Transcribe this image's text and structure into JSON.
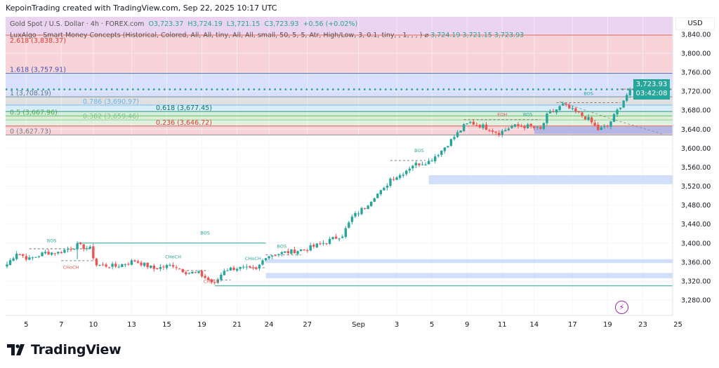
{
  "header": {
    "credit": "KepoinTrading created with TradingView.com, Sep 22, 2025 10:17 UTC"
  },
  "legend": {
    "symbol": "Gold Spot / U.S. Dollar · 4h · FOREX.com",
    "open": "O3,723.37",
    "high": "H3,724.19",
    "low": "L3,721.15",
    "close": "C3,723.93",
    "change": "+0.56 (+0.02%)",
    "indicator": "LuxAlgo - Smart Money Concepts (Historical, Colored, All, All, tiny, All, All, small, 50, 5, 5, Atr, High/Low, 3, 0.1, tiny, , 1,      ,      ,      )  ⌀",
    "indicator_values": "3,724.19  3,721.15  3,723.93"
  },
  "price_axis": {
    "currency": "USD",
    "last_price": "3,723.93",
    "countdown": "03:42:08"
  },
  "branding": {
    "logo_text": "TradingView"
  },
  "colors": {
    "up": "#26a69a",
    "down": "#ef5350",
    "accent": "#26a69a"
  },
  "chart_data": {
    "type": "candlestick",
    "title": "Gold Spot / U.S. Dollar · 4h",
    "ylim": [
      3260,
      3850
    ],
    "y_ticks": [
      "3,840.00",
      "3,800.00",
      "3,760.00",
      "3,720.00",
      "3,680.00",
      "3,640.00",
      "3,600.00",
      "3,560.00",
      "3,520.00",
      "3,480.00",
      "3,440.00",
      "3,400.00",
      "3,360.00",
      "3,320.00",
      "3,280.00"
    ],
    "y_tick_values": [
      3840,
      3800,
      3760,
      3720,
      3680,
      3640,
      3600,
      3560,
      3520,
      3480,
      3440,
      3400,
      3360,
      3320,
      3280
    ],
    "x_ticks": [
      {
        "label": "5",
        "i": 6
      },
      {
        "label": "7",
        "i": 17
      },
      {
        "label": "10",
        "i": 27
      },
      {
        "label": "13",
        "i": 39
      },
      {
        "label": "15",
        "i": 50
      },
      {
        "label": "19",
        "i": 61
      },
      {
        "label": "21",
        "i": 72
      },
      {
        "label": "24",
        "i": 82
      },
      {
        "label": "27",
        "i": 94
      },
      {
        "label": "Sep",
        "i": 110
      },
      {
        "label": "3",
        "i": 122
      },
      {
        "label": "5",
        "i": 133
      },
      {
        "label": "9",
        "i": 144
      },
      {
        "label": "11",
        "i": 155
      },
      {
        "label": "14",
        "i": 165
      },
      {
        "label": "17",
        "i": 177
      },
      {
        "label": "19",
        "i": 188
      },
      {
        "label": "23",
        "i": 199
      },
      {
        "label": "25",
        "i": 210
      }
    ],
    "price_path": [
      [
        0,
        3355
      ],
      [
        3,
        3380
      ],
      [
        7,
        3366
      ],
      [
        12,
        3380
      ],
      [
        16,
        3380
      ],
      [
        22,
        3395
      ],
      [
        26,
        3388
      ],
      [
        28,
        3354
      ],
      [
        34,
        3351
      ],
      [
        40,
        3363
      ],
      [
        46,
        3346
      ],
      [
        52,
        3354
      ],
      [
        56,
        3339
      ],
      [
        60,
        3336
      ],
      [
        65,
        3314
      ],
      [
        68,
        3344
      ],
      [
        72,
        3348
      ],
      [
        78,
        3343
      ],
      [
        81,
        3373
      ],
      [
        87,
        3380
      ],
      [
        94,
        3388
      ],
      [
        100,
        3403
      ],
      [
        105,
        3417
      ],
      [
        108,
        3454
      ],
      [
        112,
        3476
      ],
      [
        115,
        3499
      ],
      [
        118,
        3513
      ],
      [
        120,
        3536
      ],
      [
        123,
        3543
      ],
      [
        127,
        3565
      ],
      [
        132,
        3572
      ],
      [
        136,
        3595
      ],
      [
        140,
        3624
      ],
      [
        143,
        3646
      ],
      [
        145,
        3654
      ],
      [
        149,
        3646
      ],
      [
        154,
        3632
      ],
      [
        158,
        3646
      ],
      [
        163,
        3646
      ],
      [
        167,
        3639
      ],
      [
        169,
        3668
      ],
      [
        174,
        3691
      ],
      [
        178,
        3676
      ],
      [
        182,
        3661
      ],
      [
        185,
        3639
      ],
      [
        188,
        3646
      ],
      [
        192,
        3690
      ],
      [
        195,
        3724
      ]
    ],
    "fib_levels": [
      {
        "ratio": "2.618",
        "price": 3838.37,
        "label": "2.618 (3,838.37)",
        "color": "#e53935",
        "fill": "#f8d4d8"
      },
      {
        "ratio": "1.618",
        "price": 3757.91,
        "label": "1.618 (3,757.91)",
        "color": "#3f51b5",
        "fill": "#d8e0fb"
      },
      {
        "ratio": "1",
        "price": 3708.19,
        "label": "1 (3,708.19)",
        "color": "#607d8b",
        "fill": "#e0e0e0"
      },
      {
        "ratio": "0.786",
        "price": 3690.97,
        "label": "0.786 (3,690.97)",
        "color": "#64b5f6",
        "fill": "#d6ecf8"
      },
      {
        "ratio": "0.618",
        "price": 3677.45,
        "label": "0.618 (3,677.45)",
        "color": "#00796b",
        "fill": "#d3eedb"
      },
      {
        "ratio": "0.5",
        "price": 3667.96,
        "label": "0.5 (3,667.96)",
        "color": "#4caf50",
        "fill": "#dcefd6"
      },
      {
        "ratio": "0.382",
        "price": 3659.46,
        "label": "0.382 (3,659.46)",
        "color": "#81c784",
        "fill": "#dff1df"
      },
      {
        "ratio": "0.236",
        "price": 3646.72,
        "label": "0.236 (3,646.72)",
        "color": "#e53935",
        "fill": "#f8d4d8"
      },
      {
        "ratio": "0",
        "price": 3627.73,
        "label": "0 (3,627.73)",
        "color": "#787b86",
        "fill": null
      }
    ],
    "structure_labels": [
      {
        "text": "BOS",
        "i": 14,
        "price": 3402,
        "color": "#26a69a"
      },
      {
        "text": "CHoCH",
        "i": 20,
        "price": 3346,
        "color": "#ef5350"
      },
      {
        "text": "BOS",
        "i": 62,
        "price": 3418,
        "color": "#26a69a"
      },
      {
        "text": "CHoCH",
        "i": 52,
        "price": 3368,
        "color": "#26a69a"
      },
      {
        "text": "CHoCH",
        "i": 64,
        "price": 3316,
        "color": "#ef5350"
      },
      {
        "text": "CHoCH",
        "i": 77,
        "price": 3364,
        "color": "#26a69a"
      },
      {
        "text": "BOS",
        "i": 86,
        "price": 3390,
        "color": "#26a69a"
      },
      {
        "text": "BOS",
        "i": 129,
        "price": 3592,
        "color": "#26a69a"
      },
      {
        "text": "EQH",
        "i": 155,
        "price": 3668,
        "color": "#ef5350"
      },
      {
        "text": "BOS",
        "i": 163,
        "price": 3668,
        "color": "#26a69a"
      },
      {
        "text": "BOS",
        "i": 182,
        "price": 3712,
        "color": "#26a69a"
      }
    ],
    "zones": [
      {
        "from_i": 132,
        "top": 3543,
        "bottom": 3524,
        "color": "#c9d8fb"
      },
      {
        "from_i": 81,
        "top": 3366,
        "bottom": 3358,
        "color": "#c9d8fb"
      },
      {
        "from_i": 81,
        "top": 3337,
        "bottom": 3326,
        "color": "#c9d8fb"
      },
      {
        "from_i": 165,
        "top": 3646,
        "bottom": 3630,
        "color": "#a9b0e6"
      }
    ]
  }
}
